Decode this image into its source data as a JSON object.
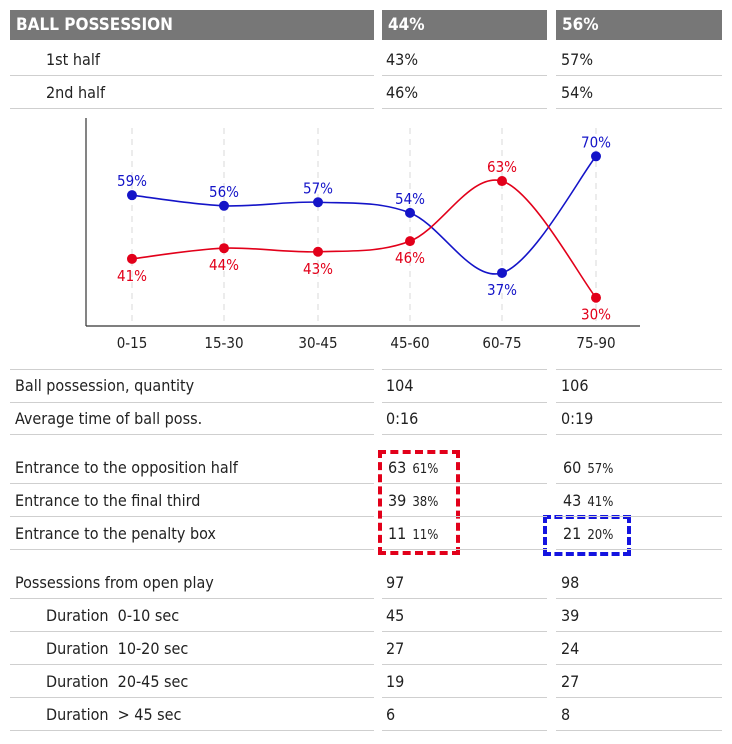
{
  "header": {
    "label": "BALL POSSESSION",
    "team1": "44%",
    "team2": "56%"
  },
  "halves": [
    {
      "label": "1st half",
      "team1": "43%",
      "team2": "57%"
    },
    {
      "label": "2nd half",
      "team1": "46%",
      "team2": "54%"
    }
  ],
  "chart_data": {
    "type": "line",
    "categories": [
      "0-15",
      "15-30",
      "30-45",
      "45-60",
      "60-75",
      "75-90"
    ],
    "series": [
      {
        "values": [
          59,
          56,
          57,
          54,
          37,
          70
        ],
        "labels": [
          "59%",
          "56%",
          "57%",
          "54%",
          "37%",
          "70%"
        ],
        "color": "#1414c8"
      },
      {
        "values": [
          41,
          44,
          43,
          46,
          63,
          30
        ],
        "labels": [
          "41%",
          "44%",
          "43%",
          "46%",
          "63%",
          "30%"
        ],
        "color": "#e2001a"
      }
    ],
    "ylim": [
      22,
      78
    ],
    "grid": "vertical dashed"
  },
  "stats": [
    {
      "label": "Ball possession, quantity",
      "team1": "104",
      "team2": "106"
    },
    {
      "label": "Average time of ball poss.",
      "team1": "0:16",
      "team2": "0:19"
    }
  ],
  "entrances": [
    {
      "label": "Entrance to the opposition half",
      "team1": "63",
      "team1_pct": "61%",
      "team2": "60",
      "team2_pct": "57%"
    },
    {
      "label": "Entrance to the final third",
      "team1": "39",
      "team1_pct": "38%",
      "team2": "43",
      "team2_pct": "41%"
    },
    {
      "label": "Entrance to the penalty box",
      "team1": "11",
      "team1_pct": "11%",
      "team2": "21",
      "team2_pct": "20%"
    }
  ],
  "open_play": {
    "label": "Possessions from open play",
    "team1": "97",
    "team2": "98"
  },
  "durations": [
    {
      "label": "Duration  0-10 sec",
      "team1": "45",
      "team2": "39"
    },
    {
      "label": "Duration  10-20 sec",
      "team1": "27",
      "team2": "24"
    },
    {
      "label": "Duration  20-45 sec",
      "team1": "19",
      "team2": "27"
    },
    {
      "label": "Duration  > 45 sec",
      "team1": "6",
      "team2": "8"
    }
  ],
  "colors": {
    "header_bg": "#777777",
    "team_blue": "#1414c8",
    "team_red": "#e2001a"
  }
}
